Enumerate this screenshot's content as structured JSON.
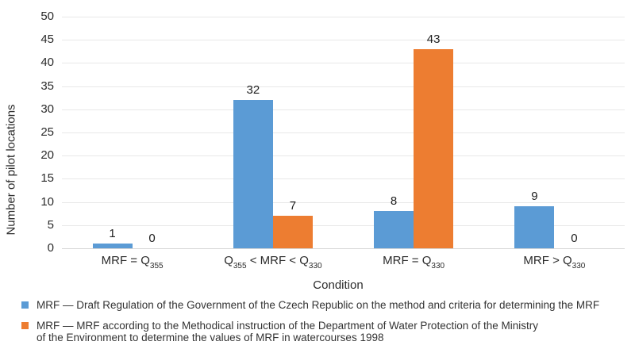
{
  "chart_data": {
    "type": "bar",
    "title": "",
    "xlabel": "Condition",
    "ylabel": "Number of pilot locations",
    "ylim": [
      0,
      50
    ],
    "ytick_step": 5,
    "grid": true,
    "legend_position": "bottom-left",
    "bar_value_labels": true,
    "categories": [
      {
        "text": "MRF = Q355",
        "parts": [
          {
            "t": "MRF = Q"
          },
          {
            "t": "355",
            "sub": true
          }
        ]
      },
      {
        "text": "Q355 < MRF < Q330",
        "parts": [
          {
            "t": "Q"
          },
          {
            "t": "355",
            "sub": true
          },
          {
            "t": " < MRF < Q"
          },
          {
            "t": "330",
            "sub": true
          }
        ]
      },
      {
        "text": "MRF = Q330",
        "parts": [
          {
            "t": "MRF = Q"
          },
          {
            "t": "330",
            "sub": true
          }
        ]
      },
      {
        "text": "MRF > Q330",
        "parts": [
          {
            "t": "MRF > Q"
          },
          {
            "t": "330",
            "sub": true
          }
        ]
      }
    ],
    "series": [
      {
        "name": "MRF — Draft Regulation of the Government of the Czech Republic on the method and criteria for determining the MRF",
        "color": "#5B9BD5",
        "values": [
          1,
          32,
          8,
          9
        ],
        "legend_lines": [
          "MRF — Draft Regulation of the Government of the Czech Republic on the method and criteria for determining the MRF"
        ]
      },
      {
        "name": "MRF — MRF according to the Methodical instruction of the Department of Water Protection of the Ministry of the Environment to determine the values of MRF in watercourses 1998",
        "color": "#ED7D31",
        "values": [
          0,
          7,
          43,
          0
        ],
        "legend_lines": [
          "MRF — MRF according to the Methodical instruction of the Department of Water Protection of the Ministry",
          "of the Environment to determine the values of MRF in watercourses 1998"
        ]
      }
    ],
    "colors": {
      "gridline": "#e8e8e8",
      "axisline": "#d6d6d6",
      "text": "#2b2b2b"
    }
  }
}
